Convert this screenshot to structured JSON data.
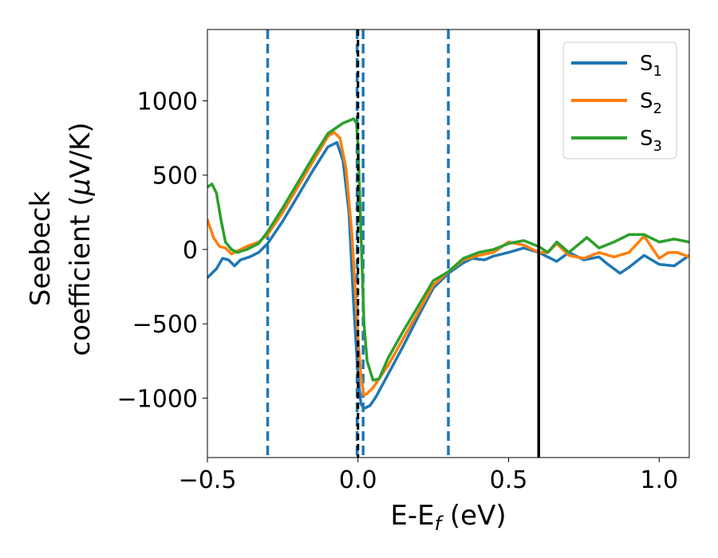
{
  "chart_data": {
    "type": "line",
    "xlabel": "E-E",
    "xlabel_sub": "f",
    "xlabel_unit": " (eV)",
    "ylabel_line1": "Seebeck",
    "ylabel_line2": "coefficient  (",
    "ylabel_mu": "μ",
    "ylabel_tail": "V/K)",
    "xlim": [
      -0.5,
      1.1
    ],
    "ylim": [
      -1400,
      1480
    ],
    "xticks": [
      -0.5,
      0.0,
      0.5,
      1.0
    ],
    "xtick_labels": [
      "−0.5",
      "0.0",
      "0.5",
      "1.0"
    ],
    "yticks": [
      -1000,
      -500,
      0,
      500,
      1000
    ],
    "ytick_labels": [
      "−1000",
      "−500",
      "0",
      "500",
      "1000"
    ],
    "grid": false,
    "legend_position": "top-right",
    "vlines_dashed": [
      -0.3,
      -0.003,
      0.017,
      0.3
    ],
    "vlines_dashed_color": "#1f77b4",
    "vline_black_dashed": 0.0,
    "vline_black_solid": 0.6,
    "series": [
      {
        "name": "S",
        "sub": "1",
        "color": "#1f77b4",
        "x": [
          -0.5,
          -0.47,
          -0.45,
          -0.43,
          -0.41,
          -0.39,
          -0.36,
          -0.33,
          -0.3,
          -0.25,
          -0.2,
          -0.15,
          -0.1,
          -0.07,
          -0.05,
          -0.03,
          -0.015,
          0.0,
          0.01,
          0.02,
          0.04,
          0.06,
          0.1,
          0.15,
          0.2,
          0.25,
          0.3,
          0.35,
          0.38,
          0.42,
          0.45,
          0.48,
          0.5,
          0.55,
          0.6,
          0.63,
          0.66,
          0.7,
          0.75,
          0.8,
          0.83,
          0.87,
          0.9,
          0.95,
          1.0,
          1.05,
          1.1
        ],
        "y": [
          -190,
          -130,
          -60,
          -70,
          -110,
          -70,
          -50,
          -20,
          40,
          190,
          360,
          530,
          690,
          720,
          600,
          250,
          -350,
          -850,
          -1040,
          -1070,
          -1050,
          -990,
          -840,
          -650,
          -450,
          -260,
          -160,
          -90,
          -60,
          -70,
          -45,
          -30,
          -20,
          10,
          -20,
          -50,
          -80,
          -20,
          -70,
          -50,
          -100,
          -160,
          -120,
          -40,
          -100,
          -110,
          -40
        ]
      },
      {
        "name": "S",
        "sub": "2",
        "color": "#ff7f0e",
        "x": [
          -0.5,
          -0.48,
          -0.46,
          -0.44,
          -0.42,
          -0.4,
          -0.37,
          -0.33,
          -0.3,
          -0.25,
          -0.2,
          -0.15,
          -0.1,
          -0.08,
          -0.06,
          -0.04,
          -0.02,
          0.0,
          0.01,
          0.02,
          0.03,
          0.05,
          0.1,
          0.15,
          0.2,
          0.25,
          0.3,
          0.35,
          0.4,
          0.45,
          0.5,
          0.55,
          0.6,
          0.63,
          0.66,
          0.7,
          0.75,
          0.8,
          0.85,
          0.9,
          0.95,
          1.0,
          1.03,
          1.06,
          1.1
        ],
        "y": [
          200,
          80,
          20,
          10,
          -30,
          -10,
          20,
          50,
          100,
          250,
          420,
          590,
          760,
          790,
          750,
          550,
          100,
          -600,
          -860,
          -980,
          -970,
          -930,
          -780,
          -600,
          -420,
          -240,
          -150,
          -70,
          -40,
          -20,
          50,
          30,
          -20,
          -20,
          40,
          -40,
          -60,
          -20,
          -50,
          -20,
          90,
          -60,
          -20,
          -20,
          -50
        ]
      },
      {
        "name": "S",
        "sub": "3",
        "color": "#2ca02c",
        "x": [
          -0.5,
          -0.485,
          -0.47,
          -0.455,
          -0.44,
          -0.42,
          -0.4,
          -0.37,
          -0.33,
          -0.3,
          -0.25,
          -0.2,
          -0.15,
          -0.1,
          -0.05,
          -0.025,
          -0.015,
          -0.005,
          0.0,
          0.01,
          0.02,
          0.03,
          0.05,
          0.07,
          0.1,
          0.15,
          0.2,
          0.25,
          0.3,
          0.35,
          0.4,
          0.45,
          0.5,
          0.55,
          0.6,
          0.63,
          0.66,
          0.7,
          0.76,
          0.8,
          0.85,
          0.9,
          0.95,
          1.0,
          1.05,
          1.1
        ],
        "y": [
          420,
          440,
          380,
          200,
          50,
          0,
          -20,
          0,
          40,
          120,
          280,
          450,
          620,
          780,
          850,
          870,
          880,
          850,
          700,
          100,
          -500,
          -750,
          -880,
          -870,
          -730,
          -550,
          -380,
          -210,
          -150,
          -60,
          -20,
          0,
          40,
          60,
          20,
          -20,
          50,
          -20,
          80,
          10,
          50,
          100,
          100,
          50,
          70,
          50
        ]
      }
    ]
  }
}
